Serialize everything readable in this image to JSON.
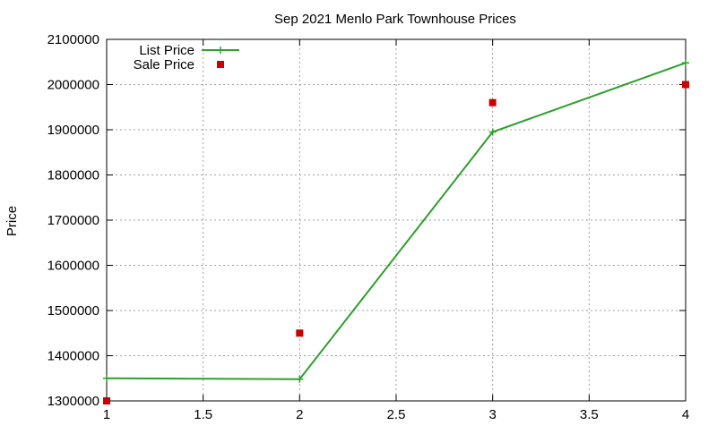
{
  "chart_data": {
    "type": "line",
    "title": "Sep 2021 Menlo Park Townhouse Prices",
    "xlabel": "",
    "ylabel": "Price",
    "xlim": [
      1,
      4
    ],
    "ylim": [
      1300000,
      2100000
    ],
    "x_ticks": [
      1,
      1.5,
      2,
      2.5,
      3,
      3.5,
      4
    ],
    "x_tick_labels": [
      "1",
      "1.5",
      "2",
      "2.5",
      "3",
      "3.5",
      "4"
    ],
    "y_ticks": [
      1300000,
      1400000,
      1500000,
      1600000,
      1700000,
      1800000,
      1900000,
      2000000,
      2100000
    ],
    "y_tick_labels": [
      "1300000",
      "1400000",
      "1500000",
      "1600000",
      "1700000",
      "1800000",
      "1900000",
      "2000000",
      "2100000"
    ],
    "grid": true,
    "legend_position": "top-left",
    "series": [
      {
        "name": "List Price",
        "style": "linespoints",
        "marker": "plus",
        "color": "#2ca02c",
        "x": [
          1,
          2,
          3,
          4
        ],
        "values": [
          1350000,
          1348000,
          1895000,
          2048000
        ]
      },
      {
        "name": "Sale Price",
        "style": "points",
        "marker": "square",
        "color": "#cc0000",
        "x": [
          1,
          2,
          3,
          4
        ],
        "values": [
          1300000,
          1450000,
          1960000,
          2000000
        ]
      }
    ]
  }
}
